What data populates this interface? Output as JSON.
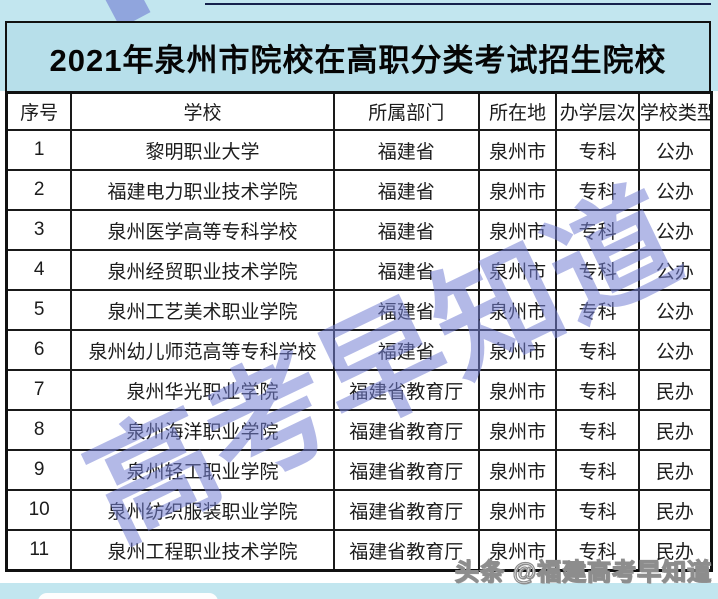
{
  "title": "2021年泉州市院校在高职分类考试招生院校",
  "table": {
    "columns": [
      "序号",
      "学校",
      "所属部门",
      "所在地",
      "办学层次",
      "学校类型"
    ],
    "rows": [
      [
        "1",
        "黎明职业大学",
        "福建省",
        "泉州市",
        "专科",
        "公办"
      ],
      [
        "2",
        "福建电力职业技术学院",
        "福建省",
        "泉州市",
        "专科",
        "公办"
      ],
      [
        "3",
        "泉州医学高等专科学校",
        "福建省",
        "泉州市",
        "专科",
        "公办"
      ],
      [
        "4",
        "泉州经贸职业技术学院",
        "福建省",
        "泉州市",
        "专科",
        "公办"
      ],
      [
        "5",
        "泉州工艺美术职业学院",
        "福建省",
        "泉州市",
        "专科",
        "公办"
      ],
      [
        "6",
        "泉州幼儿师范高等专科学校",
        "福建省",
        "泉州市",
        "专科",
        "公办"
      ],
      [
        "7",
        "泉州华光职业学院",
        "福建省教育厅",
        "泉州市",
        "专科",
        "民办"
      ],
      [
        "8",
        "泉州海洋职业学院",
        "福建省教育厅",
        "泉州市",
        "专科",
        "民办"
      ],
      [
        "9",
        "泉州轻工职业学院",
        "福建省教育厅",
        "泉州市",
        "专科",
        "民办"
      ],
      [
        "10",
        "泉州纺织服装职业学院",
        "福建省教育厅",
        "泉州市",
        "专科",
        "民办"
      ],
      [
        "11",
        "泉州工程职业技术学院",
        "福建省教育厅",
        "泉州市",
        "专科",
        "民办"
      ]
    ]
  },
  "watermark": {
    "diagonal_text": "高考早知道",
    "credit": "头条 @福建高考早知道"
  },
  "colors": {
    "frame_cyan": "#c2e6ef",
    "title_fill": "#b7dfea",
    "watermark_purple": "#747fd3",
    "border_black": "#1a1a1a",
    "navy_line": "#16224d"
  }
}
